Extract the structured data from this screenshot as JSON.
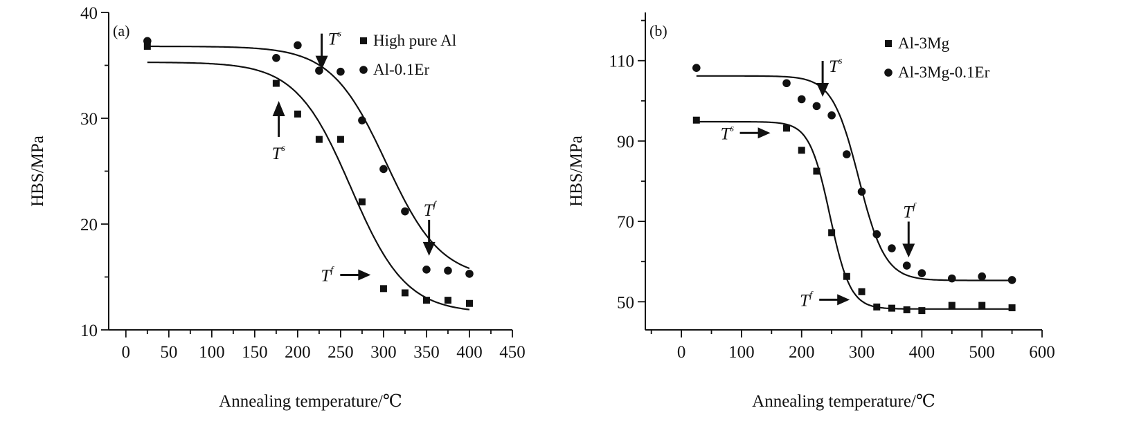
{
  "chart_data": [
    {
      "type": "scatter",
      "panel_label": "(a)",
      "xlabel": "Annealing temperature/℃",
      "ylabel": "HBS/MPa",
      "xlim": [
        -20,
        450
      ],
      "ylim": [
        10,
        40
      ],
      "xticks": [
        0,
        50,
        100,
        150,
        200,
        250,
        300,
        350,
        400,
        450
      ],
      "yticks": [
        10,
        20,
        30,
        40
      ],
      "xtick_labels": [
        "0",
        "50",
        "100",
        "150",
        "200",
        "250",
        "300",
        "350",
        "400",
        "450"
      ],
      "ytick_labels": [
        "10",
        "20",
        "30",
        "40"
      ],
      "legend_position": "top-right",
      "series": [
        {
          "name": "High pure Al",
          "marker": "square",
          "x": [
            25,
            175,
            200,
            225,
            250,
            275,
            300,
            325,
            350,
            375,
            400
          ],
          "y": [
            36.8,
            33.3,
            30.4,
            28.0,
            28.0,
            22.1,
            13.9,
            13.5,
            12.8,
            12.8,
            12.5
          ],
          "fit": {
            "top": 35.3,
            "bottom": 11.6,
            "center": 262,
            "width": 32
          }
        },
        {
          "name": "Al-0.1Er",
          "marker": "circle",
          "x": [
            25,
            175,
            200,
            225,
            250,
            275,
            300,
            325,
            350,
            375,
            400
          ],
          "y": [
            37.3,
            35.7,
            36.9,
            34.5,
            34.4,
            29.8,
            25.2,
            21.2,
            15.7,
            15.6,
            15.3
          ],
          "fit": {
            "top": 36.8,
            "bottom": 14.8,
            "center": 303,
            "width": 32
          }
        }
      ],
      "annotations": [
        {
          "label": "T",
          "sup": "s",
          "x": 178,
          "y": 30.2,
          "arrow": "up",
          "text_pos": "below"
        },
        {
          "label": "T",
          "sup": "s",
          "x": 228,
          "y": 34.6,
          "arrow": "down",
          "text_pos": "right"
        },
        {
          "label": "T",
          "sup": "f",
          "x": 285,
          "y": 15.2,
          "arrow": "right",
          "text_pos": "left"
        },
        {
          "label": "T",
          "sup": "f",
          "x": 353,
          "y": 17.0,
          "arrow": "down",
          "text_pos": "above"
        }
      ]
    },
    {
      "type": "scatter",
      "panel_label": "(b)",
      "xlabel": "Annealing temperature/℃",
      "ylabel": "HBS/MPa",
      "xlim": [
        -60,
        600
      ],
      "ylim": [
        43,
        122
      ],
      "xticks": [
        0,
        100,
        200,
        300,
        400,
        500,
        600
      ],
      "yticks": [
        50,
        70,
        90,
        110
      ],
      "xtick_labels": [
        "0",
        "100",
        "200",
        "300",
        "400",
        "500",
        "600"
      ],
      "ytick_labels": [
        "50",
        "70",
        "90",
        "110"
      ],
      "legend_position": "top-right",
      "series": [
        {
          "name": "Al-3Mg",
          "marker": "square",
          "x": [
            25,
            175,
            200,
            225,
            250,
            275,
            300,
            325,
            350,
            375,
            400,
            450,
            500,
            550
          ],
          "y": [
            95.2,
            93.2,
            87.7,
            82.5,
            67.2,
            56.3,
            52.5,
            48.7,
            48.4,
            48.0,
            47.8,
            49.1,
            49.1,
            48.5
          ],
          "fit": {
            "top": 94.8,
            "bottom": 48.2,
            "center": 247,
            "width": 17
          }
        },
        {
          "name": "Al-3Mg-0.1Er",
          "marker": "circle",
          "x": [
            25,
            175,
            200,
            225,
            250,
            275,
            300,
            325,
            350,
            375,
            400,
            450,
            500,
            550
          ],
          "y": [
            108.2,
            104.4,
            100.4,
            98.7,
            96.4,
            86.7,
            77.4,
            66.8,
            63.3,
            59.0,
            57.1,
            55.8,
            56.3,
            55.4
          ],
          "fit": {
            "top": 106.2,
            "bottom": 55.3,
            "center": 295,
            "width": 22
          }
        }
      ],
      "annotations": [
        {
          "label": "T",
          "sup": "s",
          "x": 148,
          "y": 92.0,
          "arrow": "right",
          "text_pos": "left"
        },
        {
          "label": "T",
          "sup": "s",
          "x": 235,
          "y": 101.0,
          "arrow": "down",
          "text_pos": "right"
        },
        {
          "label": "T",
          "sup": "f",
          "x": 280,
          "y": 50.5,
          "arrow": "right",
          "text_pos": "left"
        },
        {
          "label": "T",
          "sup": "f",
          "x": 378,
          "y": 61.0,
          "arrow": "down",
          "text_pos": "above"
        }
      ]
    }
  ]
}
